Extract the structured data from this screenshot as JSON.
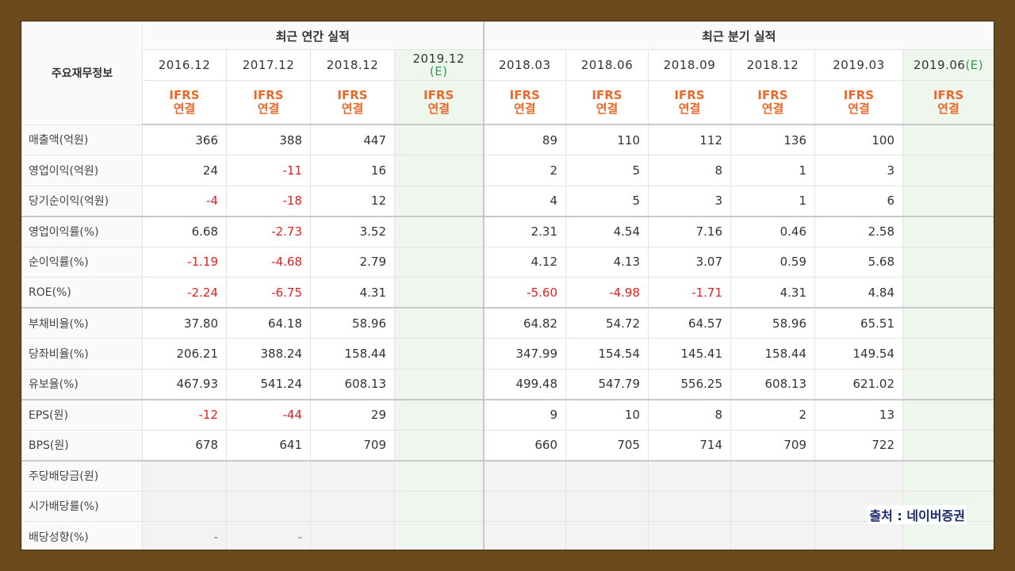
{
  "header": {
    "corner": "주요재무정보",
    "annual_title": "최근 연간 실적",
    "quarter_title": "최근 분기 실적",
    "annual_periods": [
      {
        "label": "2016.12",
        "est": ""
      },
      {
        "label": "2017.12",
        "est": ""
      },
      {
        "label": "2018.12",
        "est": ""
      },
      {
        "label": "2019.12",
        "est": "(E)"
      }
    ],
    "quarter_periods": [
      {
        "label": "2018.03",
        "est": ""
      },
      {
        "label": "2018.06",
        "est": ""
      },
      {
        "label": "2018.09",
        "est": ""
      },
      {
        "label": "2018.12",
        "est": ""
      },
      {
        "label": "2019.03",
        "est": ""
      },
      {
        "label": "2019.06",
        "est": "(E)"
      }
    ],
    "ifrs_line1": "IFRS",
    "ifrs_line2": "연결"
  },
  "rows": [
    {
      "label": "매출액(억원)",
      "annual": [
        "366",
        "388",
        "447",
        ""
      ],
      "quarter": [
        "89",
        "110",
        "112",
        "136",
        "100",
        ""
      ]
    },
    {
      "label": "영업이익(억원)",
      "annual": [
        "24",
        "-11",
        "16",
        ""
      ],
      "quarter": [
        "2",
        "5",
        "8",
        "1",
        "3",
        ""
      ]
    },
    {
      "label": "당기순이익(억원)",
      "annual": [
        "-4",
        "-18",
        "12",
        ""
      ],
      "quarter": [
        "4",
        "5",
        "3",
        "1",
        "6",
        ""
      ]
    },
    {
      "label": "영업이익률(%)",
      "annual": [
        "6.68",
        "-2.73",
        "3.52",
        ""
      ],
      "quarter": [
        "2.31",
        "4.54",
        "7.16",
        "0.46",
        "2.58",
        ""
      ]
    },
    {
      "label": "순이익률(%)",
      "annual": [
        "-1.19",
        "-4.68",
        "2.79",
        ""
      ],
      "quarter": [
        "4.12",
        "4.13",
        "3.07",
        "0.59",
        "5.68",
        ""
      ]
    },
    {
      "label": "ROE(%)",
      "annual": [
        "-2.24",
        "-6.75",
        "4.31",
        ""
      ],
      "quarter": [
        "-5.60",
        "-4.98",
        "-1.71",
        "4.31",
        "4.84",
        ""
      ]
    },
    {
      "label": "부채비율(%)",
      "annual": [
        "37.80",
        "64.18",
        "58.96",
        ""
      ],
      "quarter": [
        "64.82",
        "54.72",
        "64.57",
        "58.96",
        "65.51",
        ""
      ]
    },
    {
      "label": "당좌비율(%)",
      "annual": [
        "206.21",
        "388.24",
        "158.44",
        ""
      ],
      "quarter": [
        "347.99",
        "154.54",
        "145.41",
        "158.44",
        "149.54",
        ""
      ]
    },
    {
      "label": "유보율(%)",
      "annual": [
        "467.93",
        "541.24",
        "608.13",
        ""
      ],
      "quarter": [
        "499.48",
        "547.79",
        "556.25",
        "608.13",
        "621.02",
        ""
      ]
    },
    {
      "label": "EPS(원)",
      "annual": [
        "-12",
        "-44",
        "29",
        ""
      ],
      "quarter": [
        "9",
        "10",
        "8",
        "2",
        "13",
        ""
      ]
    },
    {
      "label": "BPS(원)",
      "annual": [
        "678",
        "641",
        "709",
        ""
      ],
      "quarter": [
        "660",
        "705",
        "714",
        "709",
        "722",
        ""
      ]
    },
    {
      "label": "주당배당금(원)",
      "annual": [
        "",
        "",
        "",
        ""
      ],
      "quarter": [
        "",
        "",
        "",
        "",
        "",
        ""
      ],
      "blank": true
    },
    {
      "label": "시가배당률(%)",
      "annual": [
        "",
        "",
        "",
        ""
      ],
      "quarter": [
        "",
        "",
        "",
        "",
        "",
        ""
      ],
      "blank": true
    },
    {
      "label": "배당성향(%)",
      "annual": [
        "-",
        "-",
        "",
        ""
      ],
      "quarter": [
        "",
        "",
        "",
        "",
        "",
        ""
      ],
      "blank": true
    }
  ],
  "source": "출처 : 네이버증권",
  "colors": {
    "frame": "#6b4a1e",
    "negative": "#e02020",
    "ifrs": "#e8692a",
    "estimate": "#2f9a50",
    "source": "#1a2a6c"
  }
}
